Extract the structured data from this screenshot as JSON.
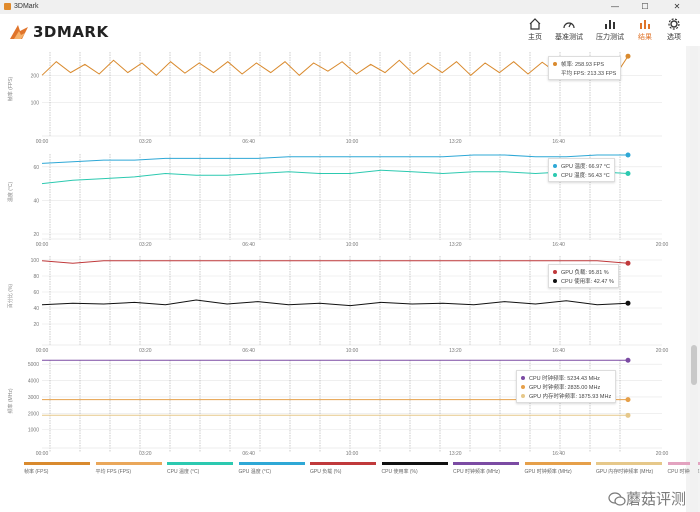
{
  "window": {
    "title": "3DMark",
    "minimize": "—",
    "maximize": "☐",
    "close": "✕"
  },
  "brand": {
    "logo_text": "3DMARK"
  },
  "nav": [
    {
      "label": "主页",
      "icon": "home-icon"
    },
    {
      "label": "基准测试",
      "icon": "gauge-icon"
    },
    {
      "label": "压力测试",
      "icon": "bar-chart-icon"
    },
    {
      "label": "结果",
      "icon": "results-icon"
    },
    {
      "label": "选项",
      "icon": "gear-icon"
    }
  ],
  "colors": {
    "accent": "#e0742a",
    "fps": "#d98a2e",
    "fps_avg": "#eaa75a",
    "cpu_temp": "#2cc9b0",
    "gpu_temp": "#2ea8d6",
    "gpu_load": "#c0393b",
    "cpu_load": "#111111",
    "cpu_clock": "#7b4ba3",
    "gpu_clock": "#e6a04a",
    "gpu_mem_clock": "#e6c88a",
    "cpu_clock2": "#e3a3c0"
  },
  "chart_data": [
    {
      "type": "line",
      "ylabel": "帧率 (FPS)",
      "ylim": [
        0,
        300
      ],
      "yticks": [
        "100",
        "200"
      ],
      "xticks": [
        "00:00",
        "03:20",
        "06:40",
        "10:00",
        "13:20",
        "16:40"
      ],
      "series": [
        {
          "name": "帧率",
          "values": [
            200,
            250,
            210,
            240,
            205,
            255,
            210,
            245,
            200,
            250,
            208,
            245,
            210,
            250,
            205,
            245,
            210,
            250,
            200,
            245,
            215,
            250,
            205,
            240,
            210,
            255,
            205,
            245,
            210,
            250,
            200,
            245,
            210,
            250,
            205,
            248,
            210,
            245,
            205,
            250,
            190,
            270
          ]
        }
      ],
      "tooltip": [
        {
          "label": "帧率",
          "value": "258.93 FPS"
        },
        {
          "label": "平均 FPS",
          "value": "213.33 FPS"
        }
      ]
    },
    {
      "type": "line",
      "ylabel": "温度 (°C)",
      "ylim": [
        20,
        70
      ],
      "yticks": [
        "60",
        "40",
        "20"
      ],
      "xticks": [
        "00:00",
        "03:20",
        "06:40",
        "10:00",
        "13:20",
        "16:40",
        "20:00"
      ],
      "series": [
        {
          "name": "GPU 温度",
          "values": [
            62,
            63,
            64,
            64,
            65,
            65,
            65,
            65,
            66,
            66,
            66,
            66,
            66,
            66,
            67,
            67,
            66,
            66,
            67,
            67
          ]
        },
        {
          "name": "CPU 温度",
          "values": [
            50,
            52,
            53,
            54,
            56,
            55,
            55,
            56,
            57,
            56,
            56,
            58,
            57,
            56,
            57,
            57,
            56,
            57,
            57,
            56
          ]
        }
      ],
      "tooltip": [
        {
          "label": "GPU 温度",
          "value": "66.97 °C"
        },
        {
          "label": "CPU 温度",
          "value": "56.43 °C"
        }
      ]
    },
    {
      "type": "line",
      "ylabel": "百分比 (%)",
      "ylim": [
        0,
        110
      ],
      "yticks": [
        "100",
        "80",
        "60",
        "40",
        "20"
      ],
      "xticks": [
        "00:00",
        "03:20",
        "06:40",
        "10:00",
        "13:20",
        "16:40",
        "20:00"
      ],
      "series": [
        {
          "name": "GPU 负载",
          "values": [
            99,
            96,
            99,
            99,
            99,
            99,
            99,
            99,
            99,
            99,
            99,
            99,
            99,
            99,
            99,
            99,
            99,
            99,
            99,
            96
          ]
        },
        {
          "name": "CPU 使用率",
          "values": [
            44,
            46,
            45,
            47,
            44,
            50,
            45,
            48,
            44,
            46,
            43,
            47,
            45,
            46,
            44,
            48,
            45,
            49,
            44,
            46
          ]
        }
      ],
      "tooltip": [
        {
          "label": "GPU 负载",
          "value": "95.81 %"
        },
        {
          "label": "CPU 使用率",
          "value": "42.47 %"
        }
      ]
    },
    {
      "type": "line",
      "ylabel": "频率 (MHz)",
      "ylim": [
        0,
        5500
      ],
      "yticks": [
        "5000",
        "4000",
        "3000",
        "2000",
        "1000"
      ],
      "xticks": [
        "00:00",
        "03:20",
        "06:40",
        "10:00",
        "13:20",
        "16:40",
        "20:00"
      ],
      "series": [
        {
          "name": "CPU 时钟频率",
          "values": [
            5240,
            5240,
            5240,
            5240,
            5240,
            5240,
            5240,
            5240,
            5240,
            5240
          ]
        },
        {
          "name": "GPU 时钟频率",
          "values": [
            2835,
            2835,
            2835,
            2835,
            2835,
            2835,
            2835,
            2835,
            2835,
            2835
          ]
        },
        {
          "name": "GPU 内存时钟频率",
          "values": [
            1875,
            1875,
            1875,
            1875,
            1875,
            1875,
            1875,
            1875,
            1875,
            1875
          ]
        }
      ],
      "tooltip": [
        {
          "label": "CPU 时钟频率",
          "value": "5234.43 MHz"
        },
        {
          "label": "GPU 时钟频率",
          "value": "2835.00 MHz"
        },
        {
          "label": "GPU 内存时钟频率",
          "value": "1875.93 MHz"
        }
      ]
    }
  ],
  "legend": [
    "帧率 (FPS)",
    "平均 FPS (FPS)",
    "CPU 温度 (°C)",
    "GPU 温度 (°C)",
    "GPU 负载 (%)",
    "CPU 使用率 (%)",
    "CPU 时钟频率 (MHz)",
    "GPU 时钟频率 (MHz)",
    "GPU 内存时钟频率 (MHz)",
    "CPU 时钟频率 (MHz)"
  ],
  "watermark": "蘑菇评测"
}
